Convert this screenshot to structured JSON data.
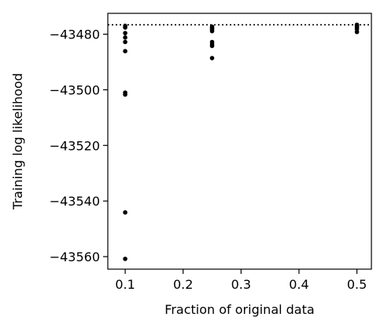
{
  "chart_data": {
    "type": "scatter",
    "title": "",
    "xlabel": "Fraction of original data",
    "ylabel": "Training log likelihood",
    "xlim": [
      0.07,
      0.525
    ],
    "ylim": [
      -43564.5,
      -43472.5
    ],
    "xticks": [
      0.1,
      0.2,
      0.3,
      0.4,
      0.5
    ],
    "xtick_labels": [
      "0.1",
      "0.2",
      "0.3",
      "0.4",
      "0.5"
    ],
    "yticks": [
      -43480,
      -43500,
      -43520,
      -43540,
      -43560
    ],
    "ytick_labels": [
      "−43480",
      "−43500",
      "−43520",
      "−43540",
      "−43560"
    ],
    "reference_line": {
      "y": -43476.6,
      "style": "dotted",
      "color": "#000000"
    },
    "marker_color": "#000000",
    "grid": false,
    "legend": "none",
    "points": [
      {
        "x": 0.1,
        "y": -43477.0
      },
      {
        "x": 0.1,
        "y": -43477.6
      },
      {
        "x": 0.1,
        "y": -43479.6
      },
      {
        "x": 0.1,
        "y": -43481.2
      },
      {
        "x": 0.1,
        "y": -43482.8
      },
      {
        "x": 0.1,
        "y": -43486.1
      },
      {
        "x": 0.1,
        "y": -43501.0
      },
      {
        "x": 0.1,
        "y": -43501.7
      },
      {
        "x": 0.1,
        "y": -43544.1
      },
      {
        "x": 0.1,
        "y": -43560.8
      },
      {
        "x": 0.25,
        "y": -43477.3
      },
      {
        "x": 0.25,
        "y": -43477.8
      },
      {
        "x": 0.25,
        "y": -43478.3
      },
      {
        "x": 0.25,
        "y": -43478.9
      },
      {
        "x": 0.25,
        "y": -43482.8
      },
      {
        "x": 0.25,
        "y": -43483.6
      },
      {
        "x": 0.25,
        "y": -43484.2
      },
      {
        "x": 0.25,
        "y": -43488.6
      },
      {
        "x": 0.5,
        "y": -43476.6
      },
      {
        "x": 0.5,
        "y": -43477.0
      },
      {
        "x": 0.5,
        "y": -43477.5
      },
      {
        "x": 0.5,
        "y": -43478.1
      },
      {
        "x": 0.5,
        "y": -43479.2
      }
    ]
  }
}
